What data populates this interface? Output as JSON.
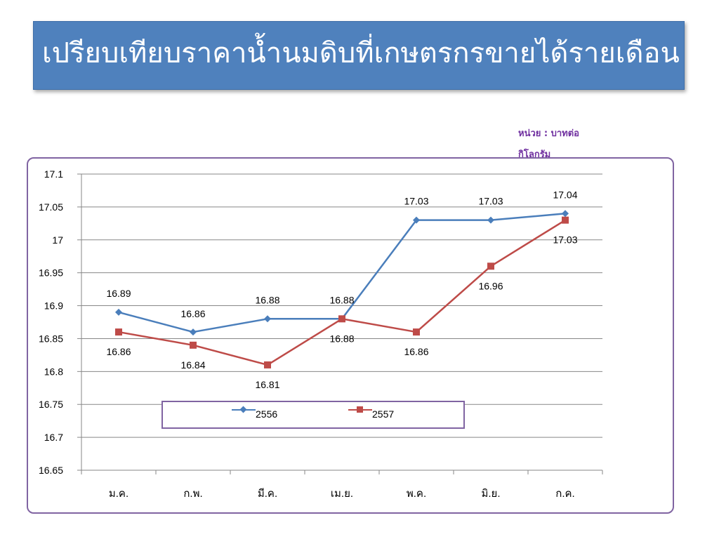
{
  "slide": {
    "title": "เปรียบเทียบราคาน้ำนมดิบที่เกษตรกรขายได้รายเดือน",
    "unit_line1": "หน่วย : บาทต่อ",
    "unit_line2": "กิโลกรัม"
  },
  "colors": {
    "banner": "#4f81bd",
    "frame": "#8064a2",
    "unit_text": "#7030a0"
  },
  "chart_data": {
    "type": "line",
    "categories": [
      "ม.ค.",
      "ก.พ.",
      "มี.ค.",
      "เม.ย.",
      "พ.ค.",
      "มิ.ย.",
      "ก.ค."
    ],
    "ylim": [
      16.65,
      17.1
    ],
    "yticks": [
      "17.1",
      "17.05",
      "17",
      "16.95",
      "16.9",
      "16.85",
      "16.8",
      "16.75",
      "16.7",
      "16.65"
    ],
    "grid": true,
    "legend_position": "bottom-inside",
    "series": [
      {
        "name": "2556",
        "color": "#4a7ebb",
        "marker": "diamond",
        "values": [
          16.89,
          16.86,
          16.88,
          16.88,
          17.03,
          17.03,
          17.04
        ],
        "labels": [
          "16.89",
          "16.86",
          "16.88",
          "16.88",
          "17.03",
          "17.03",
          "17.04"
        ]
      },
      {
        "name": "2557",
        "color": "#be4b48",
        "marker": "square",
        "values": [
          16.86,
          16.84,
          16.81,
          16.88,
          16.86,
          16.96,
          17.03
        ],
        "labels": [
          "16.86",
          "16.84",
          "16.81",
          "16.88",
          "16.86",
          "16.96",
          "17.03"
        ]
      }
    ]
  }
}
